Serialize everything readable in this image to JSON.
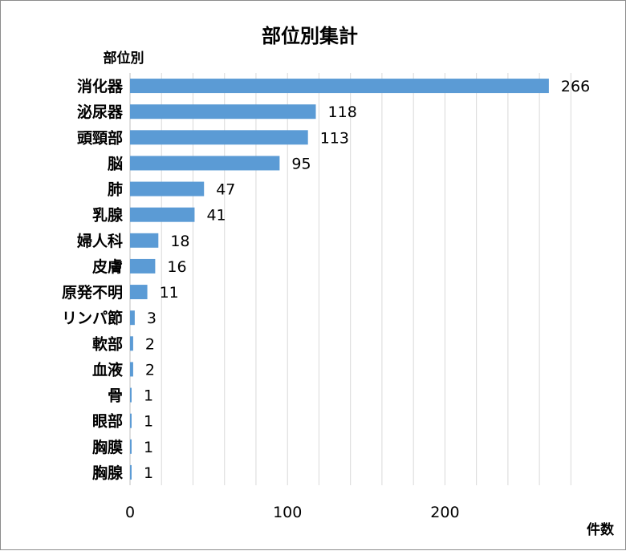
{
  "chart_data": {
    "type": "bar",
    "orientation": "horizontal",
    "title": "部位別集計",
    "ylabel": "部位別",
    "xlabel": "件数",
    "categories": [
      "消化器",
      "泌尿器",
      "頭頸部",
      "脳",
      "肺",
      "乳腺",
      "婦人科",
      "皮膚",
      "原発不明",
      "リンパ節",
      "軟部",
      "血液",
      "骨",
      "眼部",
      "胸膜",
      "胸腺"
    ],
    "values": [
      266,
      118,
      113,
      95,
      47,
      41,
      18,
      16,
      11,
      3,
      2,
      2,
      1,
      1,
      1,
      1
    ],
    "xlim": [
      0,
      280
    ],
    "xticks": [
      0,
      100,
      200
    ],
    "grid_step": 20,
    "grid": true,
    "legend": "none",
    "colors": {
      "bar": "#5b9bd5",
      "grid": "#d9d9d9",
      "axis": "#bfbfbf",
      "border": "#8c8c8c"
    }
  }
}
